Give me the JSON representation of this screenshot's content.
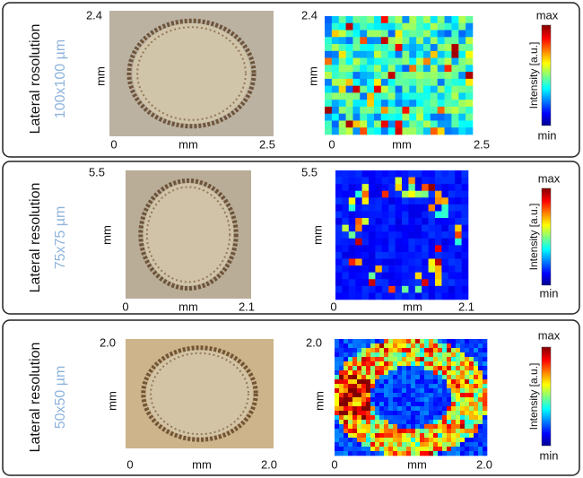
{
  "panels": [
    {
      "label": "Lateral rosolution",
      "resolution": "100x100 µm",
      "optical": {
        "y_max": "2.4",
        "y_unit": "mm",
        "x_min": "0",
        "x_unit": "mm",
        "x_max": "2.5"
      },
      "map": {
        "y_max": "2.4",
        "y_unit": "mm",
        "x_min": "0",
        "x_unit": "mm",
        "x_max": "2.5"
      },
      "colorbar": {
        "max": "max",
        "min": "min",
        "title": "Intensity [a.u.]"
      }
    },
    {
      "label": "Lateral resolution",
      "resolution": "75x75 µm",
      "optical": {
        "y_max": "5.5",
        "y_unit": "mm",
        "x_min": "0",
        "x_unit": "mm",
        "x_max": "2.1"
      },
      "map": {
        "y_max": "5.5",
        "y_unit": "mm",
        "x_min": "0",
        "x_unit": "mm",
        "x_max": "2.1"
      },
      "colorbar": {
        "max": "max",
        "min": "min",
        "title": "Intensity [a.u.]"
      }
    },
    {
      "label": "Lateral resolution",
      "resolution": "50x50 µm",
      "optical": {
        "y_max": "2.0",
        "y_unit": "mm",
        "x_min": "0",
        "x_unit": "mm",
        "x_max": "2.0"
      },
      "map": {
        "y_max": "2.0",
        "y_unit": "mm",
        "x_min": "0",
        "x_unit": "mm",
        "x_max": "2.0"
      },
      "colorbar": {
        "max": "max",
        "min": "min",
        "title": "Intensity [a.u.]"
      }
    }
  ]
}
